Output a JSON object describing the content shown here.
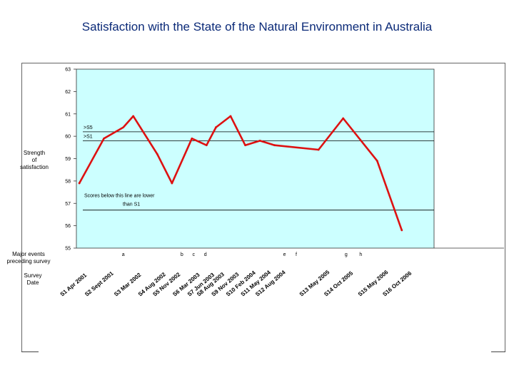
{
  "slide": {
    "title": "Satisfaction with the State of the Natural Environment in Australia"
  },
  "side_labels": {
    "ylabel_lines": [
      "Strength",
      "of",
      "satisfaction"
    ],
    "events_lines": [
      "Major events",
      "preceding survey"
    ],
    "date_lines": [
      "Survey",
      "Date"
    ]
  },
  "colors": {
    "plot_bg": "#ccffff",
    "line": "#dd1111",
    "title": "#0b2a78"
  },
  "chart_data": {
    "type": "line",
    "title": "Satisfaction with the State of the Natural Environment in Australia",
    "ylabel": "Strength of satisfaction",
    "xlabel": "Survey Date",
    "ylim": [
      55,
      63
    ],
    "yticks": [
      55,
      56,
      57,
      58,
      59,
      60,
      61,
      62,
      63
    ],
    "grid": false,
    "categories": [
      "S1 Apr 2001",
      "S2 Sept 2001",
      "S3 Mar 2002",
      "S4 Aug 2002",
      "S5 Nov 2002",
      "S6 Mar 2003",
      "S7 Jun 2003",
      "S8 Aug 2003",
      "S9 Nov 2003",
      "S10 Feb 2004",
      "S11 May 2004",
      "S12 Aug 2004",
      "S13 May 2005",
      "S14 Oct 2005",
      "S15 May 2006",
      "S16 Oct 2006"
    ],
    "x": [
      2001.25,
      2001.67,
      2002.17,
      2002.58,
      2002.83,
      2003.17,
      2003.42,
      2003.58,
      2003.83,
      2004.08,
      2004.33,
      2004.58,
      2005.33,
      2005.75,
      2006.33,
      2006.75
    ],
    "xlim": [
      2001.2,
      2007.3
    ],
    "series": [
      {
        "name": "Satisfaction",
        "path_x": [
          2001.25,
          2001.67,
          2002.0,
          2002.17,
          2002.58,
          2002.83,
          2003.17,
          2003.42,
          2003.58,
          2003.83,
          2004.08,
          2004.33,
          2004.58,
          2005.33,
          2005.75,
          2006.33,
          2006.75
        ],
        "path_y": [
          57.9,
          59.9,
          60.4,
          60.9,
          59.2,
          57.9,
          59.9,
          59.6,
          60.4,
          60.9,
          59.6,
          59.8,
          59.6,
          59.4,
          60.8,
          58.9,
          55.8
        ]
      }
    ],
    "reference_lines": [
      {
        "y": 60.2,
        "label": ">S5"
      },
      {
        "y": 59.8,
        "label": ">S1"
      },
      {
        "y": 56.7,
        "label": "Scores below this line are lower than S1"
      }
    ],
    "annotation_lines": [
      "Scores below this line are lower",
      "than S1"
    ],
    "events": [
      {
        "label": "a",
        "x": 2002.0
      },
      {
        "label": "b",
        "x": 2003.0
      },
      {
        "label": "c",
        "x": 2003.2
      },
      {
        "label": "d",
        "x": 2003.4
      },
      {
        "label": "e",
        "x": 2004.75
      },
      {
        "label": "f",
        "x": 2004.95
      },
      {
        "label": "g",
        "x": 2005.8
      },
      {
        "label": "h",
        "x": 2006.05
      }
    ]
  }
}
